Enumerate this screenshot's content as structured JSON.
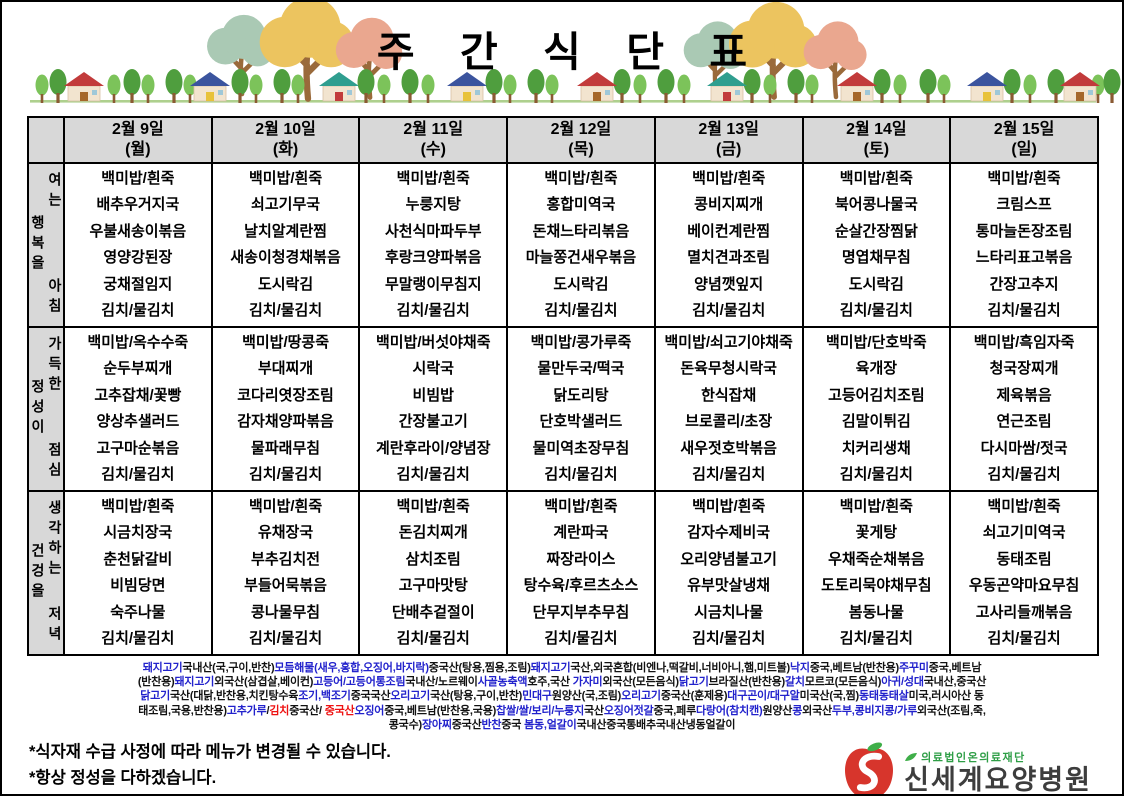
{
  "title": "주 간 식 단 표",
  "colors": {
    "item_blue": "#2222cc",
    "alert_red": "#ee1111",
    "text_black": "#111111",
    "header_gray": "#d8d8d8",
    "logo_red": "#d7352c",
    "logo_green": "#2e9e46"
  },
  "table": {
    "days": [
      {
        "date": "2월 9일",
        "dow": "(월)"
      },
      {
        "date": "2월 10일",
        "dow": "(화)"
      },
      {
        "date": "2월 11일",
        "dow": "(수)"
      },
      {
        "date": "2월 12일",
        "dow": "(목)"
      },
      {
        "date": "2월 13일",
        "dow": "(금)"
      },
      {
        "date": "2월 14일",
        "dow": "(토)"
      },
      {
        "date": "2월 15일",
        "dow": "(일)"
      }
    ],
    "meals": [
      {
        "label": {
          "left": "행복을",
          "right_top": "여는",
          "right_bottom": "아침"
        },
        "columns": [
          [
            "백미밥/흰죽",
            "배추우거지국",
            "우불새송이볶음",
            "영양강된장",
            "궁채절임지",
            "김치/물김치"
          ],
          [
            "백미밥/흰죽",
            "쇠고기무국",
            "날치알계란찜",
            "새송이청경채볶음",
            "도시락김",
            "김치/물김치"
          ],
          [
            "백미밥/흰죽",
            "누룽지탕",
            "사천식마파두부",
            "후랑크양파볶음",
            "무말랭이무침지",
            "김치/물김치"
          ],
          [
            "백미밥/흰죽",
            "홍합미역국",
            "돈채느타리볶음",
            "마늘쫑건새우볶음",
            "도시락김",
            "김치/물김치"
          ],
          [
            "백미밥/흰죽",
            "콩비지찌개",
            "베이컨계란찜",
            "멸치견과조림",
            "양념깻잎지",
            "김치/물김치"
          ],
          [
            "백미밥/흰죽",
            "북어콩나물국",
            "순살간장찜닭",
            "명엽채무침",
            "도시락김",
            "김치/물김치"
          ],
          [
            "백미밥/흰죽",
            "크림스프",
            "통마늘돈장조림",
            "느타리표고볶음",
            "간장고추지",
            "김치/물김치"
          ]
        ]
      },
      {
        "label": {
          "left": "정성이",
          "right_top": "가득한",
          "right_bottom": "점심"
        },
        "columns": [
          [
            "백미밥/옥수수죽",
            "순두부찌개",
            "고추잡채/꽃빵",
            "양상추샐러드",
            "고구마순볶음",
            "김치/물김치"
          ],
          [
            "백미밥/땅콩죽",
            "부대찌개",
            "코다리엿장조림",
            "감자채양파볶음",
            "물파래무침",
            "김치/물김치"
          ],
          [
            "백미밥/버섯야채죽",
            "시락국",
            "비빔밥",
            "간장불고기",
            "계란후라이/양념장",
            "김치/물김치"
          ],
          [
            "백미밥/콩가루죽",
            "물만두국/떡국",
            "닭도리탕",
            "단호박샐러드",
            "물미역초장무침",
            "김치/물김치"
          ],
          [
            "백미밥/쇠고기야채죽",
            "돈육무청시락국",
            "한식잡채",
            "브로콜리/초장",
            "새우젓호박볶음",
            "김치/물김치"
          ],
          [
            "백미밥/단호박죽",
            "육개장",
            "고등어김치조림",
            "김말이튀김",
            "치커리생채",
            "김치/물김치"
          ],
          [
            "백미밥/흑임자죽",
            "청국장찌개",
            "제육볶음",
            "연근조림",
            "다시마쌈/젓국",
            "김치/물김치"
          ]
        ]
      },
      {
        "label": {
          "left": "건겅을",
          "right_top": "생각하는",
          "right_bottom": "저녁"
        },
        "columns": [
          [
            "백미밥/흰죽",
            "시금치장국",
            "춘천닭갈비",
            "비빔당면",
            "숙주나물",
            "김치/물김치"
          ],
          [
            "백미밥/흰죽",
            "유채장국",
            "부추김치전",
            "부들어묵볶음",
            "콩나물무침",
            "김치/물김치"
          ],
          [
            "백미밥/흰죽",
            "돈김치찌개",
            "삼치조림",
            "고구마맛탕",
            "단배추겉절이",
            "김치/물김치"
          ],
          [
            "백미밥/흰죽",
            "계란파국",
            "짜장라이스",
            "탕수육/후르츠소스",
            "단무지부추무침",
            "김치/물김치"
          ],
          [
            "백미밥/흰죽",
            "감자수제비국",
            "오리양념불고기",
            "유부맛살냉채",
            "시금치나물",
            "김치/물김치"
          ],
          [
            "백미밥/흰죽",
            "꽃게탕",
            "우채죽순채볶음",
            "도토리묵야채무침",
            "봄동나물",
            "김치/물김치"
          ],
          [
            "백미밥/흰죽",
            "쇠고기미역국",
            "동태조림",
            "우동곤약마요무침",
            "고사리들깨볶음",
            "김치/물김치"
          ]
        ]
      }
    ]
  },
  "origin_info": {
    "lines": [
      [
        {
          "t": "돼지고기",
          "c": "b"
        },
        {
          "t": "국내산(국,구이,반찬)",
          "c": "k"
        },
        {
          "t": "모듬해물(새우,홍합,오징어,바지락)",
          "c": "b"
        },
        {
          "t": "중국산(탕용,찜용,조림)",
          "c": "k"
        },
        {
          "t": "돼지고기",
          "c": "b"
        },
        {
          "t": "국산,외국혼합(비엔나,떡갈비,너비아니,햄,미트볼)",
          "c": "k"
        },
        {
          "t": "낙지",
          "c": "b"
        },
        {
          "t": "중국,베트남(반찬용)",
          "c": "k"
        },
        {
          "t": "주꾸미",
          "c": "b"
        },
        {
          "t": "중국,베트남",
          "c": "k"
        }
      ],
      [
        {
          "t": "(반찬용)",
          "c": "k"
        },
        {
          "t": "돼지고기",
          "c": "b"
        },
        {
          "t": "외국산(삼겹살,베이컨)",
          "c": "k"
        },
        {
          "t": "고등어/고등어통조림",
          "c": "b"
        },
        {
          "t": "국내산/노르웨이",
          "c": "k"
        },
        {
          "t": "사골농축액",
          "c": "b"
        },
        {
          "t": "호주,국산 ",
          "c": "k"
        },
        {
          "t": "가자미",
          "c": "b"
        },
        {
          "t": "외국산(모든음식)",
          "c": "k"
        },
        {
          "t": "닭고기",
          "c": "b"
        },
        {
          "t": "브라질산(반찬용)",
          "c": "k"
        },
        {
          "t": "갈치",
          "c": "b"
        },
        {
          "t": "모르코(모든음식)",
          "c": "k"
        },
        {
          "t": "아귀/성대",
          "c": "b"
        },
        {
          "t": "국내산,중국산",
          "c": "k"
        }
      ],
      [
        {
          "t": "닭고기",
          "c": "b"
        },
        {
          "t": "국산(대닭,반찬용,치킨탕수육",
          "c": "k"
        },
        {
          "t": "조기,백조기",
          "c": "b"
        },
        {
          "t": "중국국산",
          "c": "k"
        },
        {
          "t": "오리고기",
          "c": "b"
        },
        {
          "t": "국산(탕용,구이,반찬)",
          "c": "k"
        },
        {
          "t": "민대구",
          "c": "b"
        },
        {
          "t": "원양산(국,조림)",
          "c": "k"
        },
        {
          "t": "오리고기",
          "c": "b"
        },
        {
          "t": "중국산(훈제용)",
          "c": "k"
        },
        {
          "t": "대구곤이/대구알",
          "c": "b"
        },
        {
          "t": "미국산(국,찜)",
          "c": "k"
        },
        {
          "t": "동태동태살",
          "c": "b"
        },
        {
          "t": "미국,러시아산 동",
          "c": "k"
        }
      ],
      [
        {
          "t": "태조림,국용,반찬용)",
          "c": "k"
        },
        {
          "t": "고추가루",
          "c": "b"
        },
        {
          "t": "/",
          "c": "k"
        },
        {
          "t": "김치",
          "c": "r"
        },
        {
          "t": "중국산/ ",
          "c": "k"
        },
        {
          "t": "중국산",
          "c": "r"
        },
        {
          "t": "오징어",
          "c": "b"
        },
        {
          "t": "중국,베트남(반찬용,국용)",
          "c": "k"
        },
        {
          "t": "찹쌀/쌀/보리/누룽지",
          "c": "b"
        },
        {
          "t": "국산",
          "c": "k"
        },
        {
          "t": "오징어젓갈",
          "c": "b"
        },
        {
          "t": "중국,페루",
          "c": "k"
        },
        {
          "t": "다랑어(참치캔)",
          "c": "b"
        },
        {
          "t": "원양산",
          "c": "k"
        },
        {
          "t": "콩",
          "c": "b"
        },
        {
          "t": "외국산",
          "c": "k"
        },
        {
          "t": "두부,콩비지콩/가루",
          "c": "b"
        },
        {
          "t": "외국산(조림,죽,",
          "c": "k"
        }
      ],
      [
        {
          "t": "콩국수)",
          "c": "k"
        },
        {
          "t": "장아찌",
          "c": "b"
        },
        {
          "t": "중국산",
          "c": "k"
        },
        {
          "t": "반찬",
          "c": "b"
        },
        {
          "t": "중국 ",
          "c": "k"
        },
        {
          "t": "봄동,얼갈이",
          "c": "b"
        },
        {
          "t": "국내산중국통배추국내산냉동얼갈이",
          "c": "k"
        }
      ]
    ]
  },
  "notes": {
    "line1": "*식자재 수급 사정에 따라 메뉴가 변경될 수 있습니다.",
    "line2": "*항상 정성을 다하겠습니다."
  },
  "logo": {
    "org": "의료법인온의료재단",
    "name": "신세계요양병원"
  }
}
